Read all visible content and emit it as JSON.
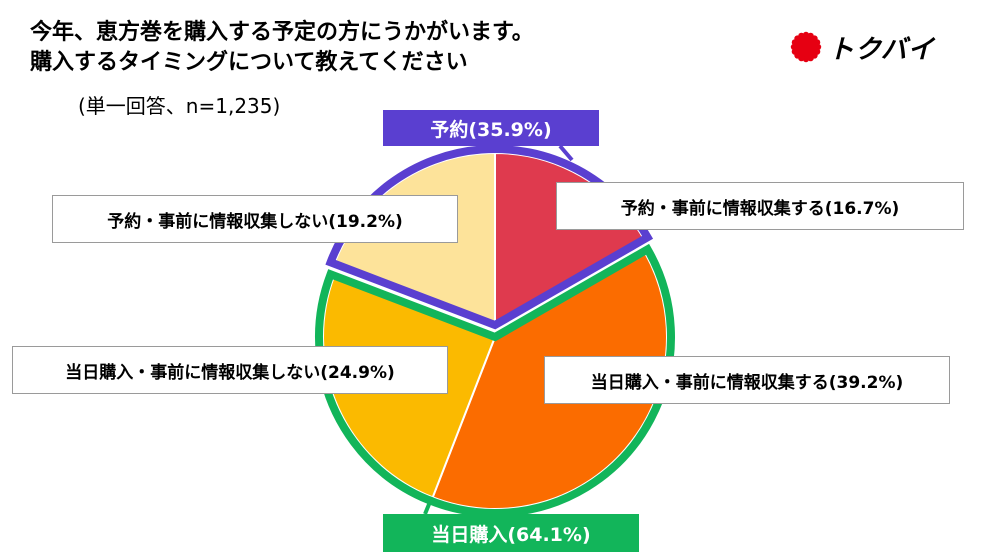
{
  "header": {
    "title_line1": "今年、恵方巻を購入する予定の方にうかがいます。",
    "title_line2": "購入するタイミングについて教えてください",
    "subtitle": "(単一回答、n=1,235)"
  },
  "brand": {
    "name": "トクバイ",
    "color": "#e60012"
  },
  "colors": {
    "reserve_border": "#5a3fd0",
    "sameday_border": "#12b55a"
  },
  "chart_data": {
    "type": "pie",
    "n": 1235,
    "slices": [
      {
        "label": "予約・事前に情報収集する(16.7%)",
        "value": 16.7,
        "color": "#df3a4e",
        "group": "reserve"
      },
      {
        "label": "当日購入・事前に情報収集する(39.2%)",
        "value": 39.2,
        "color": "#fb6c00",
        "group": "sameday"
      },
      {
        "label": "当日購入・事前に情報収集しない(24.9%)",
        "value": 24.9,
        "color": "#fbba00",
        "group": "sameday"
      },
      {
        "label": "予約・事前に情報収集しない(19.2%)",
        "value": 19.2,
        "color": "#fde39a",
        "group": "reserve"
      }
    ],
    "groups": [
      {
        "key": "reserve",
        "label": "予約(35.9%)",
        "value": 35.9,
        "color": "#5a3fd0"
      },
      {
        "key": "sameday",
        "label": "当日購入(64.1%)",
        "value": 64.1,
        "color": "#12b55a"
      }
    ]
  }
}
